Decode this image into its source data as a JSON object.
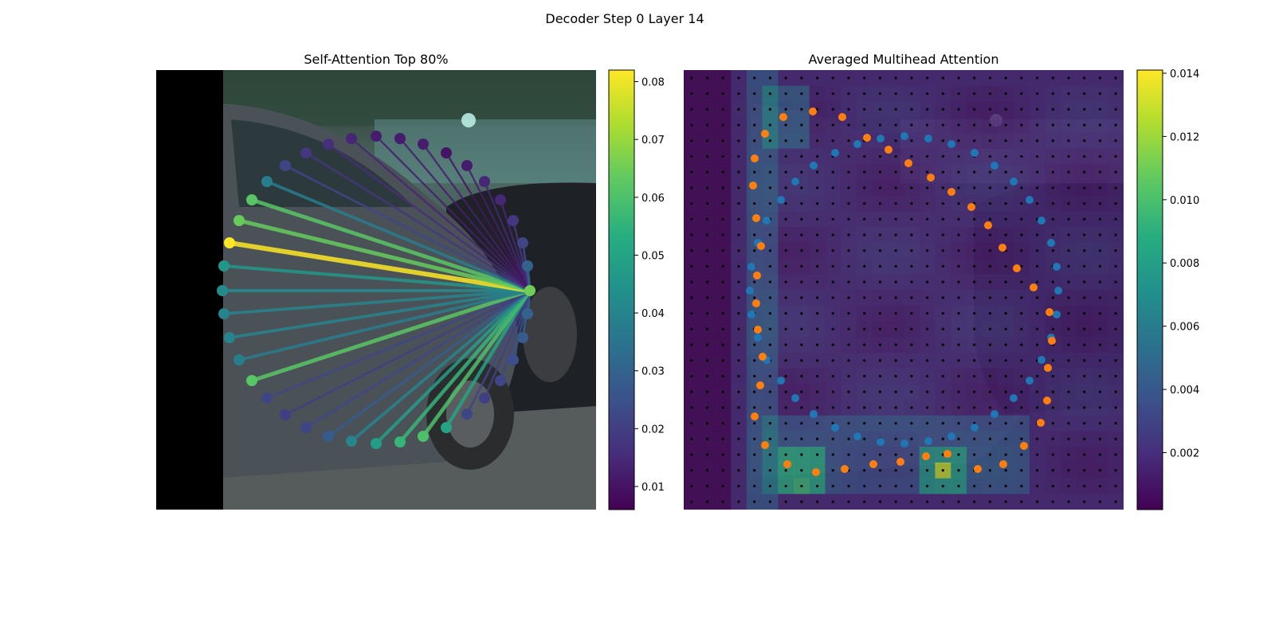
{
  "figure": {
    "suptitle": "Decoder Step 0 Layer 14"
  },
  "chart_data": [
    {
      "type": "scatter",
      "title": "Self-Attention Top 80%",
      "description_points_order": "clockwise contour starting at rightmost (query) point",
      "query_index": 0,
      "points": [
        [
          665,
          365
        ],
        [
          662,
          394
        ],
        [
          656,
          424
        ],
        [
          644,
          452
        ],
        [
          628,
          478
        ],
        [
          608,
          500
        ],
        [
          586,
          520
        ],
        [
          560,
          537
        ],
        [
          531,
          548
        ],
        [
          502,
          555
        ],
        [
          472,
          557
        ],
        [
          441,
          554
        ],
        [
          412,
          548
        ],
        [
          384,
          537
        ],
        [
          358,
          521
        ],
        [
          335,
          500
        ],
        [
          316,
          478
        ],
        [
          300,
          452
        ],
        [
          288,
          424
        ],
        [
          281,
          394
        ],
        [
          279,
          365
        ],
        [
          281,
          334
        ],
        [
          288,
          305
        ],
        [
          300,
          277
        ],
        [
          316,
          251
        ],
        [
          335,
          228
        ],
        [
          358,
          208
        ],
        [
          384,
          192
        ],
        [
          412,
          181
        ],
        [
          441,
          174
        ],
        [
          472,
          171
        ],
        [
          502,
          174
        ],
        [
          531,
          181
        ],
        [
          560,
          192
        ],
        [
          586,
          208
        ],
        [
          608,
          228
        ],
        [
          628,
          251
        ],
        [
          644,
          277
        ],
        [
          656,
          305
        ],
        [
          662,
          334
        ]
      ],
      "attention": [
        0.065,
        0.03,
        0.028,
        0.024,
        0.022,
        0.02,
        0.022,
        0.05,
        0.06,
        0.056,
        0.048,
        0.04,
        0.028,
        0.022,
        0.02,
        0.022,
        0.062,
        0.038,
        0.04,
        0.04,
        0.042,
        0.046,
        0.082,
        0.064,
        0.062,
        0.038,
        0.022,
        0.018,
        0.016,
        0.014,
        0.012,
        0.012,
        0.012,
        0.01,
        0.012,
        0.014,
        0.014,
        0.018,
        0.022,
        0.03
      ],
      "colorbar": {
        "min": 0.006,
        "max": 0.082,
        "ticks": [
          "0.01",
          "0.02",
          "0.03",
          "0.04",
          "0.05",
          "0.06",
          "0.07",
          "0.08"
        ],
        "tick_values": [
          0.01,
          0.02,
          0.03,
          0.04,
          0.05,
          0.06,
          0.07,
          0.08
        ]
      }
    },
    {
      "type": "heatmap",
      "title": "Averaged Multihead Attention",
      "grid": [
        28,
        28
      ],
      "blue_points": [
        [
          1326,
          395
        ],
        [
          1328,
          365
        ],
        [
          1326,
          335
        ],
        [
          1319,
          305
        ],
        [
          1307,
          277
        ],
        [
          1292,
          251
        ],
        [
          1272,
          228
        ],
        [
          1248,
          208
        ],
        [
          1223,
          192
        ],
        [
          1194,
          181
        ],
        [
          1165,
          174
        ],
        [
          1135,
          171
        ],
        [
          1105,
          174
        ],
        [
          1076,
          181
        ],
        [
          1048,
          192
        ],
        [
          1021,
          208
        ],
        [
          998,
          228
        ],
        [
          980,
          251
        ],
        [
          962,
          277
        ],
        [
          951,
          305
        ],
        [
          943,
          335
        ],
        [
          941,
          365
        ],
        [
          943,
          395
        ],
        [
          951,
          424
        ],
        [
          962,
          452
        ],
        [
          980,
          478
        ],
        [
          998,
          500
        ],
        [
          1021,
          520
        ],
        [
          1048,
          537
        ],
        [
          1076,
          548
        ],
        [
          1105,
          555
        ],
        [
          1135,
          557
        ],
        [
          1165,
          554
        ],
        [
          1194,
          548
        ],
        [
          1223,
          537
        ],
        [
          1248,
          520
        ],
        [
          1272,
          500
        ],
        [
          1292,
          478
        ],
        [
          1307,
          452
        ],
        [
          1319,
          424
        ]
      ],
      "orange_points": [
        [
          1020,
          140
        ],
        [
          1057,
          147
        ],
        [
          1088,
          173
        ],
        [
          1115,
          188
        ],
        [
          1140,
          205
        ],
        [
          1168,
          223
        ],
        [
          1194,
          241
        ],
        [
          1219,
          260
        ],
        [
          1240,
          283
        ],
        [
          1258,
          311
        ],
        [
          1276,
          337
        ],
        [
          1297,
          361
        ],
        [
          1317,
          392
        ],
        [
          1320,
          428
        ],
        [
          1315,
          462
        ],
        [
          1314,
          503
        ],
        [
          1306,
          531
        ],
        [
          1285,
          560
        ],
        [
          1259,
          583
        ],
        [
          1227,
          589
        ],
        [
          1189,
          570
        ],
        [
          1162,
          573
        ],
        [
          1130,
          580
        ],
        [
          1096,
          583
        ],
        [
          1060,
          589
        ],
        [
          1024,
          593
        ],
        [
          988,
          583
        ],
        [
          960,
          559
        ],
        [
          947,
          523
        ],
        [
          954,
          484
        ],
        [
          957,
          448
        ],
        [
          951,
          414
        ],
        [
          949,
          381
        ],
        [
          950,
          346
        ],
        [
          955,
          309
        ],
        [
          949,
          274
        ],
        [
          945,
          233
        ],
        [
          947,
          199
        ],
        [
          960,
          168
        ],
        [
          983,
          147
        ]
      ],
      "colorbar": {
        "min": 0.0002,
        "max": 0.0141,
        "ticks": [
          "0.002",
          "0.004",
          "0.006",
          "0.008",
          "0.010",
          "0.012",
          "0.014"
        ],
        "tick_values": [
          0.002,
          0.004,
          0.006,
          0.008,
          0.01,
          0.012,
          0.014
        ]
      }
    }
  ]
}
